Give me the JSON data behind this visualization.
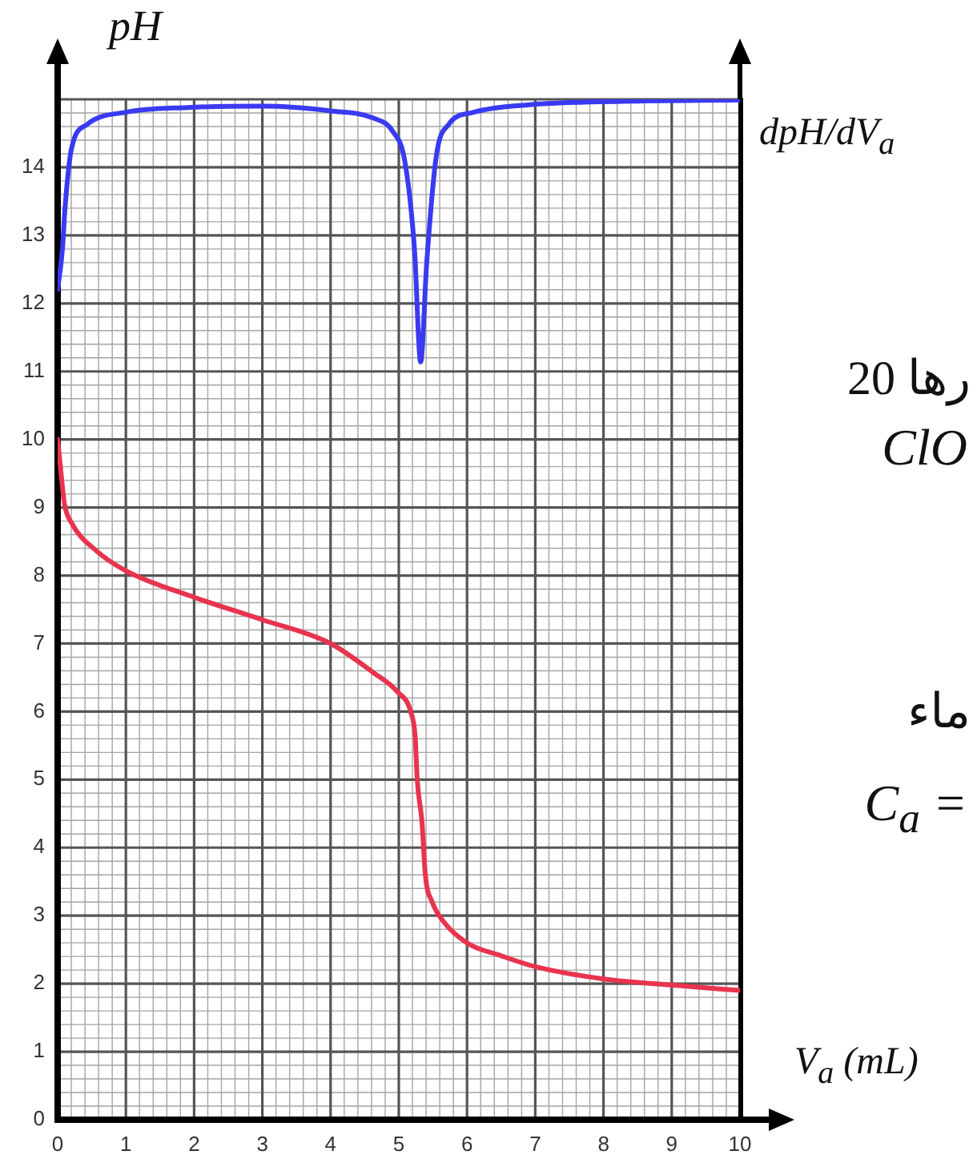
{
  "chart_data": {
    "type": "line",
    "ylabel": "pH",
    "y2label": "dpH/dV$_{a}$",
    "xlabel": "V$_{a}$ (mL)",
    "annotations": [
      "رها 20",
      "ClO",
      "ماء",
      "C$_{a}$ ="
    ],
    "series": [
      {
        "color": "#e8344e",
        "x": [
          0,
          0.05,
          0.1,
          0.2,
          0.56,
          1.0,
          2.0,
          3.0,
          4.0,
          4.63,
          4.98,
          5.18,
          5.24,
          5.27,
          5.34,
          5.39,
          5.49,
          5.65,
          6.0,
          6.5,
          7.0,
          8.0,
          9.0,
          10.0
        ],
        "values": [
          10,
          9.5,
          9.05,
          8.78,
          8.37,
          8.07,
          7.68,
          7.35,
          7.0,
          6.57,
          6.29,
          5.98,
          5.63,
          5.0,
          4.37,
          3.59,
          3.2,
          2.92,
          2.6,
          2.41,
          2.25,
          2.07,
          1.98,
          1.9
        ]
      },
      {
        "color": "#3a3af2",
        "x": [
          0,
          0.07,
          0.11,
          0.2,
          0.43,
          1.0,
          1.9,
          3.0,
          4.0,
          4.64,
          4.91,
          5.09,
          5.23,
          5.32,
          5.41,
          5.55,
          5.73,
          6.1,
          6.92,
          8.29,
          10.0
        ],
        "values": [
          12.2,
          12.8,
          13.43,
          14.26,
          14.63,
          14.81,
          14.88,
          14.9,
          14.83,
          14.72,
          14.53,
          14.08,
          12.79,
          11.14,
          12.61,
          14.17,
          14.63,
          14.81,
          14.92,
          14.97,
          14.99
        ]
      }
    ],
    "xlim": [
      0,
      10
    ],
    "ylim": [
      0,
      15
    ],
    "xticks": [
      0,
      {
        "value": 0.2,
        "label": null
      },
      {
        "value": 0.4,
        "label": null
      },
      {
        "value": 0.6,
        "label": null
      },
      {
        "value": 0.8,
        "label": null
      },
      1,
      {
        "value": 1.2,
        "label": null
      },
      {
        "value": 1.4,
        "label": null
      },
      {
        "value": 1.6,
        "label": null
      },
      {
        "value": 1.8,
        "label": null
      },
      2,
      {
        "value": 2.2,
        "label": null
      },
      {
        "value": 2.4,
        "label": null
      },
      {
        "value": 2.6,
        "label": null
      },
      {
        "value": 2.8,
        "label": null
      },
      3,
      {
        "value": 3.2,
        "label": null
      },
      {
        "value": 3.4,
        "label": null
      },
      {
        "value": 3.6,
        "label": null
      },
      {
        "value": 3.8,
        "label": null
      },
      4,
      {
        "value": 4.2,
        "label": null
      },
      {
        "value": 4.4,
        "label": null
      },
      {
        "value": 4.6,
        "label": null
      },
      {
        "value": 4.8,
        "label": null
      },
      5,
      {
        "value": 5.2,
        "label": null
      },
      {
        "value": 5.4,
        "label": null
      },
      {
        "value": 5.6,
        "label": null
      },
      {
        "value": 5.8,
        "label": null
      },
      6,
      {
        "value": 6.2,
        "label": null
      },
      {
        "value": 6.4,
        "label": null
      },
      {
        "value": 6.6,
        "label": null
      },
      {
        "value": 6.8,
        "label": null
      },
      7,
      {
        "value": 7.2,
        "label": null
      },
      {
        "value": 7.4,
        "label": null
      },
      {
        "value": 7.6,
        "label": null
      },
      {
        "value": 7.8,
        "label": null
      },
      8,
      {
        "value": 8.2,
        "label": null
      },
      {
        "value": 8.4,
        "label": null
      },
      {
        "value": 8.6,
        "label": null
      },
      {
        "value": 8.8,
        "label": null
      },
      9,
      {
        "value": 9.2,
        "label": null
      },
      {
        "value": 9.4,
        "label": null
      },
      {
        "value": 9.6,
        "label": null
      },
      {
        "value": 9.8,
        "label": null
      },
      10
    ],
    "yticks": [
      0,
      {
        "value": 0.2,
        "label": null
      },
      {
        "value": 0.4,
        "label": null
      },
      {
        "value": 0.6,
        "label": null
      },
      {
        "value": 0.8,
        "label": null
      },
      1,
      {
        "value": 1.2,
        "label": null
      },
      {
        "value": 1.4,
        "label": null
      },
      {
        "value": 1.6,
        "label": null
      },
      {
        "value": 1.8,
        "label": null
      },
      2,
      {
        "value": 2.2,
        "label": null
      },
      {
        "value": 2.4,
        "label": null
      },
      {
        "value": 2.6,
        "label": null
      },
      {
        "value": 2.8,
        "label": null
      },
      3,
      {
        "value": 3.2,
        "label": null
      },
      {
        "value": 3.4,
        "label": null
      },
      {
        "value": 3.6,
        "label": null
      },
      {
        "value": 3.8,
        "label": null
      },
      4,
      {
        "value": 4.2,
        "label": null
      },
      {
        "value": 4.4,
        "label": null
      },
      {
        "value": 4.6,
        "label": null
      },
      {
        "value": 4.8,
        "label": null
      },
      5,
      {
        "value": 5.2,
        "label": null
      },
      {
        "value": 5.4,
        "label": null
      },
      {
        "value": 5.6,
        "label": null
      },
      {
        "value": 5.8,
        "label": null
      },
      6,
      {
        "value": 6.2,
        "label": null
      },
      {
        "value": 6.4,
        "label": null
      },
      {
        "value": 6.6,
        "label": null
      },
      {
        "value": 6.8,
        "label": null
      },
      7,
      {
        "value": 7.2,
        "label": null
      },
      {
        "value": 7.4,
        "label": null
      },
      {
        "value": 7.6,
        "label": null
      },
      {
        "value": 7.8,
        "label": null
      },
      8,
      {
        "value": 8.2,
        "label": null
      },
      {
        "value": 8.4,
        "label": null
      },
      {
        "value": 8.6,
        "label": null
      },
      {
        "value": 8.8,
        "label": null
      },
      9,
      {
        "value": 9.2,
        "label": null
      },
      {
        "value": 9.4,
        "label": null
      },
      {
        "value": 9.6,
        "label": null
      },
      {
        "value": 9.8,
        "label": null
      },
      10,
      {
        "value": 10.2,
        "label": null
      },
      {
        "value": 10.4,
        "label": null
      },
      {
        "value": 10.6,
        "label": null
      },
      {
        "value": 10.8,
        "label": null
      },
      11,
      {
        "value": 11.2,
        "label": null
      },
      {
        "value": 11.4,
        "label": null
      },
      {
        "value": 11.6,
        "label": null
      },
      {
        "value": 11.8,
        "label": null
      },
      12,
      {
        "value": 12.2,
        "label": null
      },
      {
        "value": 12.4,
        "label": null
      },
      {
        "value": 12.6,
        "label": null
      },
      {
        "value": 12.8,
        "label": null
      },
      13,
      {
        "value": 13.2,
        "label": null
      },
      {
        "value": 13.4,
        "label": null
      },
      {
        "value": 13.6,
        "label": null
      },
      {
        "value": 13.8,
        "label": null
      },
      14,
      {
        "value": 14.2,
        "label": null
      },
      {
        "value": 14.4,
        "label": null
      },
      {
        "value": 14.6,
        "label": null
      },
      {
        "value": 14.8,
        "label": null
      },
      {
        "value": 15,
        "label": null
      }
    ],
    "grid": true,
    "marker": "none"
  }
}
